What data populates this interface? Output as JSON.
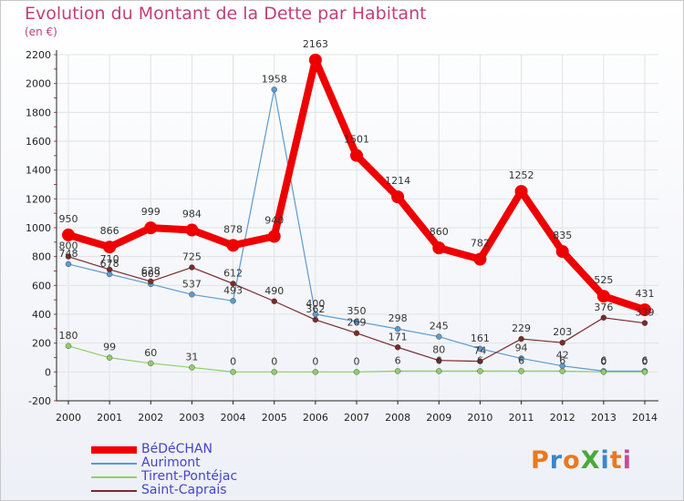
{
  "title": "Evolution du Montant de la Dette par Habitant",
  "unit_label": "(en €)",
  "logo_text": "ProXiti",
  "colors": {
    "title": "#c0407a",
    "grid": "#e2e2e2",
    "axis": "#222222",
    "legend_text": "#4444cc"
  },
  "chart_data": {
    "type": "line",
    "title": "Evolution du Montant de la Dette par Habitant",
    "ylabel": "(en €)",
    "x": [
      "2000",
      "2001",
      "2002",
      "2003",
      "2004",
      "2005",
      "2006",
      "2007",
      "2008",
      "2009",
      "2010",
      "2011",
      "2012",
      "2013",
      "2014"
    ],
    "ylim": [
      -200,
      2200
    ],
    "yticks": [
      -200,
      0,
      200,
      400,
      600,
      800,
      1000,
      1200,
      1400,
      1600,
      1800,
      2000,
      2200
    ],
    "grid": true,
    "legend_position": "bottom-left",
    "series": [
      {
        "name": "BéDéCHAN",
        "color": "#ee0000",
        "values": [
          950,
          866,
          999,
          984,
          878,
          940,
          2163,
          1501,
          1214,
          860,
          782,
          1252,
          835,
          525,
          431
        ]
      },
      {
        "name": "Aurimont",
        "color": "#5a9bd0",
        "values": [
          748,
          678,
          609,
          537,
          493,
          1958,
          400,
          350,
          298,
          245,
          161,
          94,
          42,
          6,
          6
        ]
      },
      {
        "name": "Tirent-Pontéjac",
        "color": "#8ecf6a",
        "values": [
          180,
          99,
          60,
          31,
          0,
          0,
          0,
          0,
          6,
          6,
          6,
          6,
          6,
          0,
          0
        ]
      },
      {
        "name": "Saint-Caprais",
        "color": "#7a2a2a",
        "values": [
          800,
          710,
          628,
          725,
          612,
          490,
          362,
          269,
          171,
          80,
          74,
          229,
          203,
          376,
          339
        ]
      }
    ]
  }
}
